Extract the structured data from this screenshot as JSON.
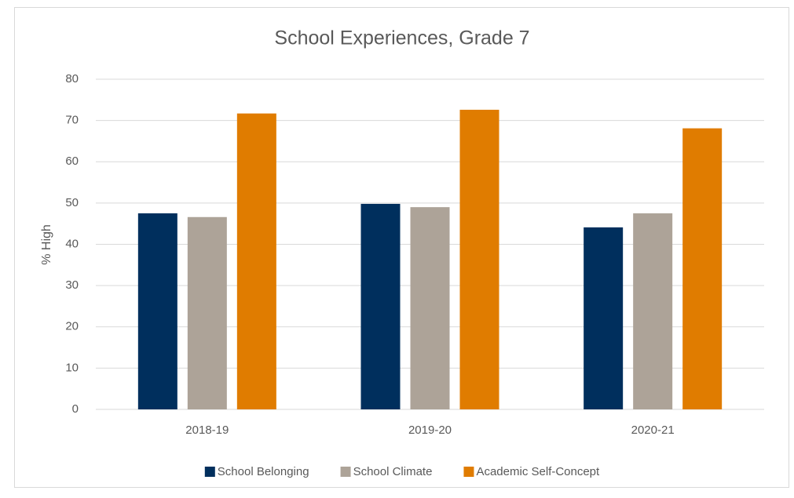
{
  "chart_data": {
    "type": "bar",
    "title": "School Experiences, Grade 7",
    "y_label": "% High",
    "categories": [
      "2018-19",
      "2019-20",
      "2020-21"
    ],
    "series": [
      {
        "name": "School Belonging",
        "color": "#002f5d",
        "values": [
          47.5,
          49.8,
          44.1
        ]
      },
      {
        "name": "School Climate",
        "color": "#ada398",
        "values": [
          46.6,
          49.0,
          47.5
        ]
      },
      {
        "name": "Academic Self-Concept",
        "color": "#e07c00",
        "values": [
          71.7,
          72.6,
          68.1
        ]
      }
    ],
    "ylim": [
      0,
      80
    ],
    "yticks": [
      0,
      10,
      20,
      30,
      40,
      50,
      60,
      70,
      80
    ],
    "grid": true,
    "legend": "bottom"
  }
}
